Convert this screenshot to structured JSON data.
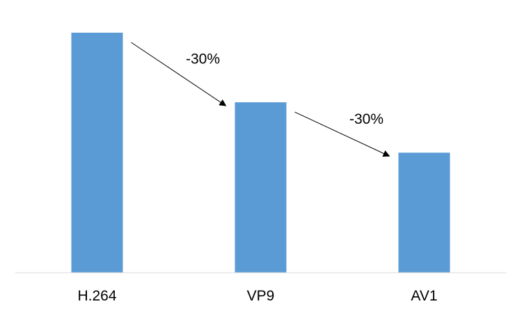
{
  "chart_data": {
    "type": "bar",
    "title": "",
    "xlabel": "",
    "ylabel": "",
    "categories": [
      "H.264",
      "VP9",
      "AV1"
    ],
    "values": [
      100,
      71,
      50
    ],
    "ylim": [
      0,
      100
    ],
    "grid": false,
    "legend": "none",
    "bar_color": "#5B9BD5",
    "annotations": [
      {
        "text": "-30%",
        "from": "H.264",
        "to": "VP9"
      },
      {
        "text": "-30%",
        "from": "VP9",
        "to": "AV1"
      }
    ]
  }
}
